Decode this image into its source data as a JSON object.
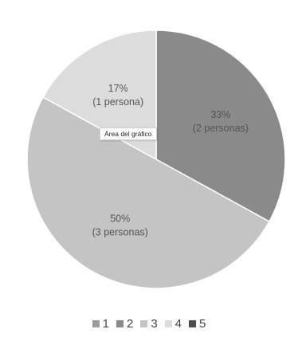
{
  "tooltip": "Área del gráfico",
  "chart_data": {
    "type": "pie",
    "categories": [
      "1",
      "2",
      "3",
      "4",
      "5"
    ],
    "values": [
      0,
      33,
      50,
      17,
      0
    ],
    "slice_labels": [
      {
        "category": "2",
        "percent": "33%",
        "count": "(2 personas)"
      },
      {
        "category": "3",
        "percent": "50%",
        "count": "(3 personas)"
      },
      {
        "category": "4",
        "percent": "17%",
        "count": "(1 persona)"
      }
    ],
    "colors": [
      "#9d9d9d",
      "#8a8a8a",
      "#c4c4c4",
      "#dcdcdc",
      "#4d4d4d"
    ],
    "legend": {
      "placement": "bottom",
      "labels": [
        "1",
        "2",
        "3",
        "4",
        "5"
      ]
    }
  }
}
